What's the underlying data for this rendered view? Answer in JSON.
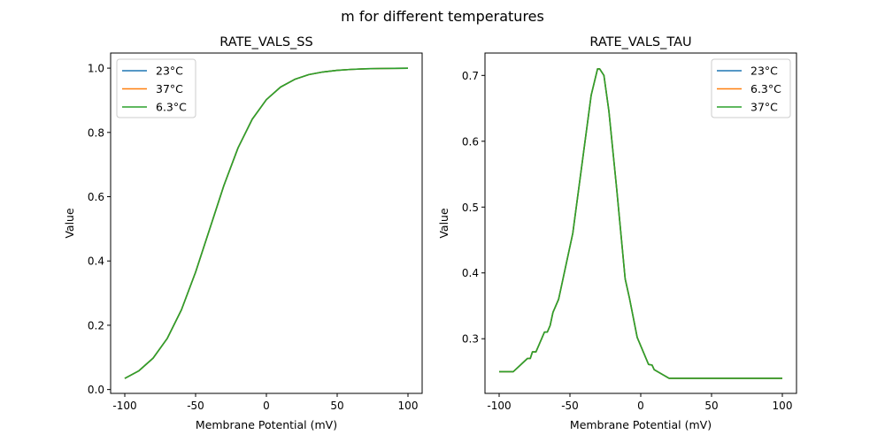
{
  "chart_data": {
    "suptitle": "m for different temperatures",
    "colors": {
      "blue": "#1f77b4",
      "orange": "#ff7f0e",
      "green": "#2ca02c"
    },
    "charts": [
      {
        "type": "line",
        "title": "RATE_VALS_SS",
        "xlabel": "Membrane Potential (mV)",
        "ylabel": "Value",
        "xlim": [
          -110,
          110
        ],
        "ylim": [
          -0.012,
          1.047
        ],
        "xticks": [
          -100,
          -50,
          0,
          50,
          100
        ],
        "yticks": [
          0.0,
          0.2,
          0.4,
          0.6,
          0.8,
          1.0
        ],
        "ytick_labels": [
          "0.0",
          "0.2",
          "0.4",
          "0.6",
          "0.8",
          "1.0"
        ],
        "legend": "top-left",
        "x": [
          -100,
          -90,
          -80,
          -70,
          -60,
          -50,
          -40,
          -30,
          -20,
          -10,
          0,
          10,
          20,
          30,
          40,
          50,
          60,
          70,
          80,
          90,
          100
        ],
        "y": [
          0.0345,
          0.0585,
          0.0977,
          0.159,
          0.248,
          0.365,
          0.5,
          0.635,
          0.752,
          0.841,
          0.902,
          0.941,
          0.965,
          0.98,
          0.988,
          0.993,
          0.996,
          0.998,
          0.9988,
          0.9993,
          0.9996
        ],
        "series": [
          {
            "name": "23°C",
            "color": "#1f77b4"
          },
          {
            "name": "37°C",
            "color": "#ff7f0e"
          },
          {
            "name": "6.3°C",
            "color": "#2ca02c"
          }
        ]
      },
      {
        "type": "line",
        "title": "RATE_VALS_TAU",
        "xlabel": "Membrane Potential (mV)",
        "ylabel": "Value",
        "xlim": [
          -110,
          110
        ],
        "ylim": [
          0.217,
          0.734
        ],
        "xticks": [
          -100,
          -50,
          0,
          50,
          100
        ],
        "yticks": [
          0.3,
          0.4,
          0.5,
          0.6,
          0.7
        ],
        "ytick_labels": [
          "0.3",
          "0.4",
          "0.5",
          "0.6",
          "0.7"
        ],
        "legend": "top-right",
        "x": [
          -100,
          -90,
          -80,
          -78,
          -76.5,
          -74,
          -68,
          -66,
          -64,
          -62,
          -58,
          -48,
          -35,
          -30.5,
          -29,
          -26,
          -22.5,
          -17,
          -11,
          -8,
          -2.5,
          5.5,
          8,
          9.5,
          20,
          100
        ],
        "y": [
          0.25,
          0.25,
          0.27,
          0.27,
          0.28,
          0.28,
          0.31,
          0.31,
          0.32,
          0.34,
          0.36,
          0.46,
          0.67,
          0.71,
          0.71,
          0.7,
          0.646,
          0.528,
          0.391,
          0.362,
          0.302,
          0.261,
          0.26,
          0.253,
          0.24,
          0.24
        ],
        "series": [
          {
            "name": "23°C",
            "color": "#1f77b4"
          },
          {
            "name": "6.3°C",
            "color": "#ff7f0e"
          },
          {
            "name": "37°C",
            "color": "#2ca02c"
          }
        ]
      }
    ]
  }
}
